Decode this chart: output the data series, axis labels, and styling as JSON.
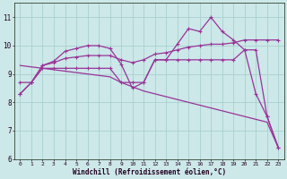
{
  "xlabel": "Windchill (Refroidissement éolien,°C)",
  "background_color": "#cce8e8",
  "grid_color": "#aad0d0",
  "line_color": "#993399",
  "hours": [
    0,
    1,
    2,
    3,
    4,
    5,
    6,
    7,
    8,
    9,
    10,
    11,
    12,
    13,
    14,
    15,
    16,
    17,
    18,
    19,
    20,
    21,
    22,
    23
  ],
  "line_jagged": [
    8.3,
    8.7,
    9.3,
    9.45,
    9.8,
    9.9,
    10.0,
    10.0,
    9.9,
    9.35,
    8.5,
    8.7,
    9.5,
    9.5,
    10.05,
    10.6,
    10.5,
    11.0,
    10.5,
    10.2,
    9.85,
    8.3,
    7.5,
    6.4
  ],
  "line_smooth": [
    8.3,
    8.7,
    9.3,
    9.4,
    9.55,
    9.6,
    9.65,
    9.65,
    9.65,
    9.5,
    9.4,
    9.5,
    9.7,
    9.75,
    9.85,
    9.95,
    10.0,
    10.05,
    10.05,
    10.1,
    10.2,
    10.2,
    10.2,
    10.2
  ],
  "line_flat": [
    8.7,
    8.7,
    9.2,
    9.2,
    9.2,
    9.2,
    9.2,
    9.2,
    9.2,
    8.7,
    8.7,
    8.7,
    9.5,
    9.5,
    9.5,
    9.5,
    9.5,
    9.5,
    9.5,
    9.5,
    9.85,
    9.85,
    7.5,
    6.4
  ],
  "line_diag": [
    9.3,
    9.25,
    9.2,
    9.15,
    9.1,
    9.05,
    9.0,
    8.95,
    8.9,
    8.7,
    8.55,
    8.4,
    8.3,
    8.2,
    8.1,
    8.0,
    7.9,
    7.8,
    7.7,
    7.6,
    7.5,
    7.4,
    7.3,
    6.4
  ],
  "ylim": [
    6,
    11.5
  ],
  "yticks": [
    6,
    7,
    8,
    9,
    10,
    11
  ],
  "xlim_min": -0.5,
  "xlim_max": 23.5
}
